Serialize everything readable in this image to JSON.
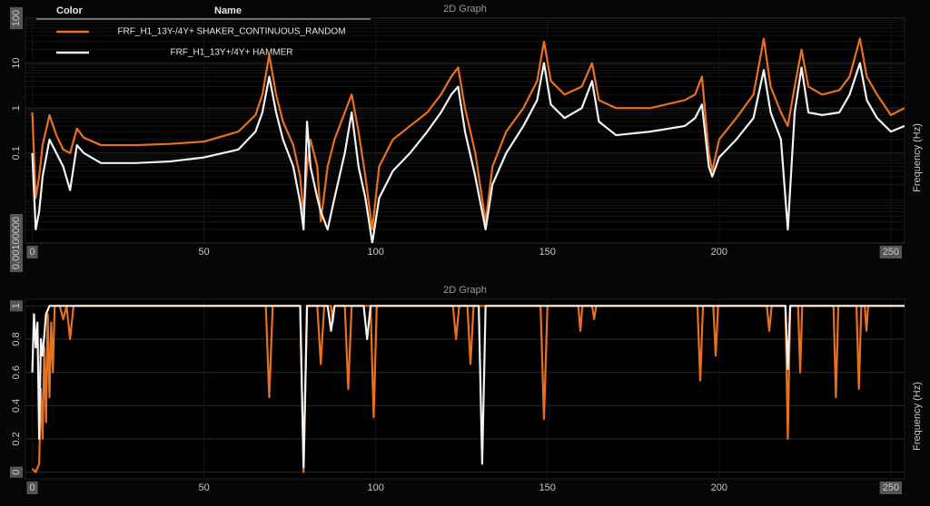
{
  "chart_data": [
    {
      "type": "line",
      "title": "2D Graph",
      "xlabel": "Frequency (Hz)",
      "legend_headers": [
        "Color",
        "Name"
      ],
      "legend": "upper left",
      "ylog": true,
      "grid": true,
      "xlim": [
        -2,
        254
      ],
      "xticks": [
        0,
        50,
        100,
        150,
        200,
        250
      ],
      "ylim": [
        0.001,
        100
      ],
      "yticks": [
        {
          "value": 0.001,
          "label": "0.00100000"
        },
        0.1,
        1,
        10,
        100
      ],
      "x": [
        0,
        1,
        2,
        3,
        5,
        7,
        9,
        11,
        13,
        15,
        20,
        30,
        40,
        50,
        60,
        65,
        67,
        69,
        71,
        73,
        76,
        78,
        79,
        80,
        81,
        83,
        84,
        86,
        88,
        91,
        93,
        95,
        97,
        99,
        101,
        105,
        110,
        115,
        119,
        122,
        124,
        126,
        129,
        132,
        134,
        138,
        143,
        147,
        149,
        151,
        155,
        160,
        163,
        165,
        170,
        180,
        190,
        193,
        195,
        197,
        198,
        200,
        205,
        210,
        213,
        215,
        218,
        220,
        222,
        224,
        226,
        230,
        235,
        238,
        241,
        243,
        246,
        250,
        254
      ],
      "series": [
        {
          "name": "FRF_H1_13Y-/4Y+ SHAKER_CONTINUOUS_RANDOM",
          "color": "#e8711f",
          "values": [
            0.8,
            0.01,
            0.03,
            0.15,
            0.7,
            0.25,
            0.12,
            0.1,
            0.35,
            0.22,
            0.15,
            0.15,
            0.16,
            0.18,
            0.3,
            0.7,
            2,
            15,
            2,
            0.5,
            0.15,
            0.03,
            0.004,
            0.05,
            0.2,
            0.05,
            0.003,
            0.05,
            0.2,
            0.8,
            2,
            0.3,
            0.03,
            0.002,
            0.05,
            0.2,
            0.4,
            0.8,
            2,
            5,
            8,
            1,
            0.1,
            0.003,
            0.05,
            0.3,
            1,
            4,
            30,
            4,
            2,
            3,
            10,
            1.5,
            1,
            1,
            1.5,
            2,
            5,
            0.1,
            0.04,
            0.2,
            0.6,
            2,
            35,
            3,
            0.8,
            0.4,
            3,
            20,
            3,
            2,
            2.5,
            5,
            35,
            5,
            2,
            0.7,
            1
          ]
        },
        {
          "name": "FRF_H1_13Y+/4Y+ HAMMER",
          "color": "#f2f2f2",
          "values": [
            0.1,
            0.002,
            0.005,
            0.03,
            0.2,
            0.1,
            0.05,
            0.015,
            0.15,
            0.1,
            0.06,
            0.06,
            0.065,
            0.08,
            0.12,
            0.3,
            0.8,
            5,
            0.8,
            0.2,
            0.05,
            0.008,
            0.002,
            0.5,
            0.05,
            0.01,
            0.005,
            0.002,
            0.01,
            0.1,
            0.8,
            0.05,
            0.01,
            0.001,
            0.01,
            0.04,
            0.1,
            0.3,
            0.8,
            2,
            3,
            0.3,
            0.03,
            0.002,
            0.02,
            0.1,
            0.4,
            1.5,
            10,
            1.2,
            0.6,
            1,
            4,
            0.5,
            0.25,
            0.3,
            0.4,
            0.6,
            1.2,
            0.05,
            0.03,
            0.08,
            0.2,
            0.6,
            7,
            0.8,
            0.2,
            0.002,
            0.8,
            8,
            0.8,
            0.7,
            0.8,
            2,
            10,
            1.5,
            0.6,
            0.3,
            0.4
          ]
        }
      ]
    },
    {
      "type": "line",
      "title": "2D Graph",
      "xlabel": "Frequency (Hz)",
      "grid": true,
      "xlim": [
        -2,
        254
      ],
      "xticks": [
        0,
        50,
        100,
        150,
        200,
        250
      ],
      "ylim": [
        -0.04,
        1.04
      ],
      "yticks": [
        0,
        0.2,
        0.4,
        0.6,
        0.8,
        1
      ],
      "series": [
        {
          "color": "#e8711f",
          "x": [
            0,
            1,
            2,
            2.5,
            3,
            3.5,
            4,
            4.5,
            5,
            5.5,
            6,
            6.5,
            8,
            9,
            10,
            11,
            12,
            68,
            69,
            70,
            78,
            79,
            80,
            83,
            84,
            85,
            87,
            87.5,
            88,
            91,
            92,
            93,
            98.5,
            99.4,
            100.3,
            122.5,
            123.4,
            124.3,
            126.7,
            127.6,
            128.5,
            148,
            149,
            150,
            159,
            159.6,
            160.2,
            163,
            163.6,
            164.2,
            193.7,
            194.5,
            195.3,
            198.3,
            199,
            199.7,
            213.9,
            214.6,
            215.3,
            219.3,
            220,
            220.7,
            223,
            223.6,
            224.2,
            233.3,
            234,
            234.7,
            240,
            240.7,
            241.4,
            242.4,
            242.9,
            243.4,
            254
          ],
          "values": [
            0.02,
            0,
            0.05,
            0.5,
            0.2,
            0.75,
            0.3,
            0.95,
            0.45,
            0.9,
            0.6,
            1,
            1,
            0.92,
            1,
            0.8,
            1,
            1,
            0.45,
            1,
            1,
            0,
            1,
            1,
            0.65,
            1,
            1,
            0.9,
            1,
            1,
            0.5,
            1,
            1,
            0.33,
            1,
            1,
            0.8,
            1,
            1,
            0.65,
            1,
            1,
            0.32,
            1,
            1,
            0.85,
            1,
            1,
            0.92,
            1,
            1,
            0.55,
            1,
            1,
            0.7,
            1,
            1,
            0.85,
            1,
            1,
            0.2,
            1,
            1,
            0.6,
            1,
            1,
            0.45,
            1,
            1,
            0.5,
            1,
            1,
            0.85,
            1,
            1
          ]
        },
        {
          "color": "#f2f2f2",
          "x": [
            0,
            0.5,
            1,
            1.5,
            2,
            2.5,
            3,
            4,
            5,
            78,
            79,
            80,
            86,
            87,
            88,
            96.5,
            97.5,
            98.5,
            130,
            131,
            132,
            219.3,
            220,
            220.7,
            254
          ],
          "values": [
            0.6,
            0.95,
            0.75,
            0.9,
            0.2,
            0.8,
            0.7,
            0.95,
            1,
            1,
            0.03,
            1,
            1,
            0.85,
            1,
            1,
            0.8,
            1,
            1,
            0.05,
            1,
            1,
            0.62,
            1,
            1
          ]
        }
      ]
    }
  ]
}
